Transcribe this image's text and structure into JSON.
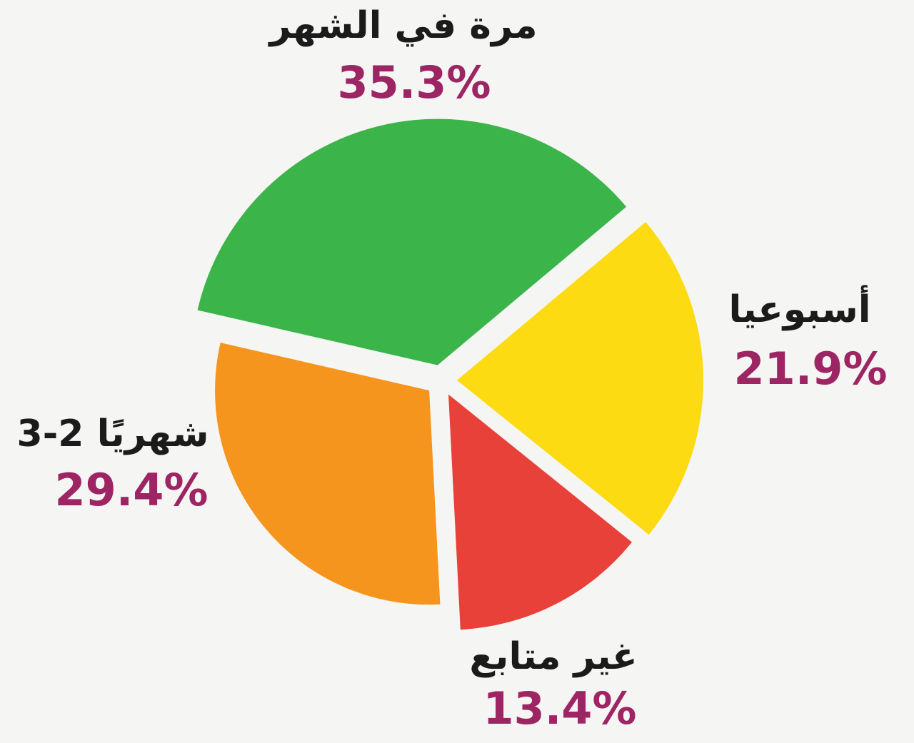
{
  "background_color": "#f5f5f3",
  "label_color": "#1b1b1b",
  "percent_color": "#9e2563",
  "chart_data": {
    "type": "pie",
    "style": "exploded",
    "title": "",
    "legend": "none",
    "slices": [
      {
        "label": "مرة في الشهر",
        "value": 35.3,
        "percent_text": "35.3%",
        "color": "#3bb44a",
        "position": "top"
      },
      {
        "label": "أسبوعيا",
        "value": 21.9,
        "percent_text": "21.9%",
        "color": "#fddb12",
        "position": "right"
      },
      {
        "label": "غير متابع",
        "value": 13.4,
        "percent_text": "13.4%",
        "color": "#e8413a",
        "position": "bottom"
      },
      {
        "label": "3-2 شهريًا",
        "value": 29.4,
        "percent_text": "29.4%",
        "color": "#f5951d",
        "position": "left"
      }
    ]
  }
}
